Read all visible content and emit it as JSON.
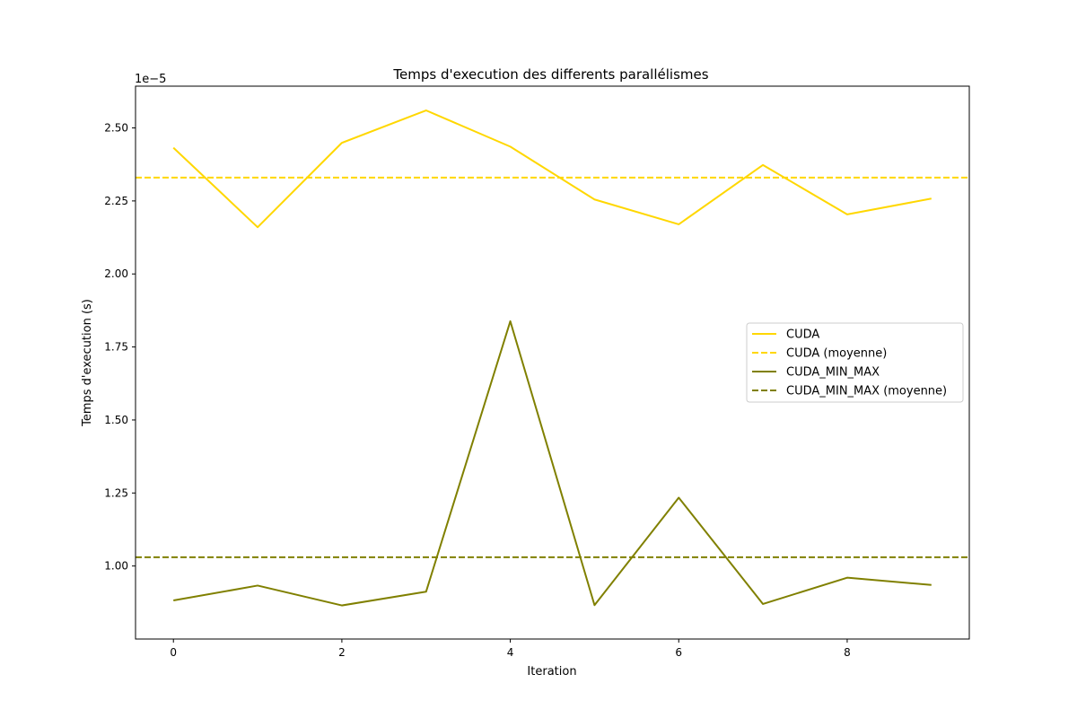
{
  "chart_data": {
    "type": "line",
    "title": "Temps d'execution des differents parallélismes",
    "xlabel": "Iteration",
    "ylabel": "Temps d'execution (s)",
    "y_offset_label": "1e−5",
    "y_scale_factor": 1e-05,
    "xlim": [
      -0.45,
      9.45
    ],
    "ylim": [
      7.5e-06,
      2.643e-05
    ],
    "x_ticks": [
      0,
      2,
      4,
      6,
      8
    ],
    "x_tick_labels": [
      "0",
      "2",
      "4",
      "6",
      "8"
    ],
    "y_ticks": [
      1e-05,
      1.25e-05,
      1.5e-05,
      1.75e-05,
      2e-05,
      2.25e-05,
      2.5e-05
    ],
    "y_tick_labels": [
      "1.00",
      "1.25",
      "1.50",
      "1.75",
      "2.00",
      "2.25",
      "2.50"
    ],
    "grid": false,
    "legend_position": "center-right",
    "x": [
      0,
      1,
      2,
      3,
      4,
      5,
      6,
      7,
      8,
      9
    ],
    "series": [
      {
        "name": "CUDA",
        "style": "solid",
        "color": "#FFD700",
        "values": [
          2.432e-05,
          2.16e-05,
          2.449e-05,
          2.56e-05,
          2.436e-05,
          2.255e-05,
          2.17e-05,
          2.373e-05,
          2.204e-05,
          2.258e-05
        ]
      },
      {
        "name": "CUDA (moyenne)",
        "style": "dashed",
        "color": "#FFD700",
        "mean": 2.33e-05
      },
      {
        "name": "CUDA_MIN_MAX",
        "style": "solid",
        "color": "#808000",
        "values": [
          8.82e-06,
          9.33e-06,
          8.65e-06,
          9.12e-06,
          1.838e-05,
          8.66e-06,
          1.234e-05,
          8.7e-06,
          9.6e-06,
          9.35e-06
        ]
      },
      {
        "name": "CUDA_MIN_MAX (moyenne)",
        "style": "dashed",
        "color": "#808000",
        "mean": 1.03e-05
      }
    ]
  }
}
